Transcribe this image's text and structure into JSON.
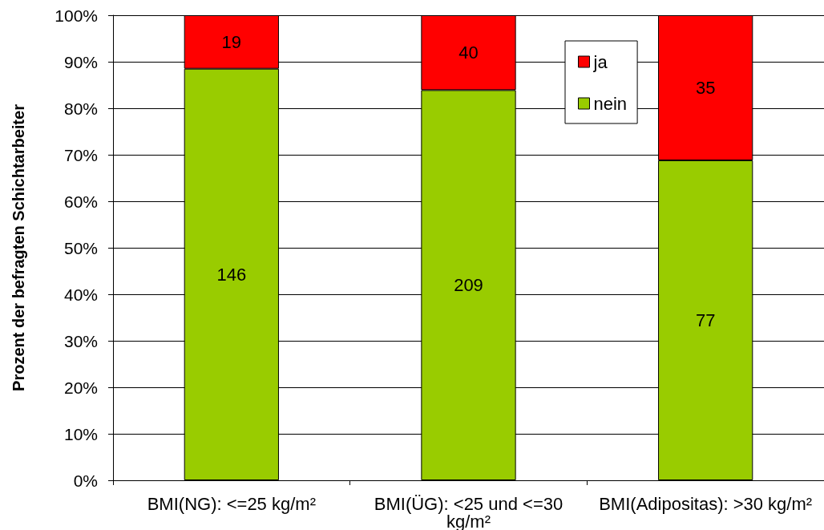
{
  "chart_data": {
    "type": "bar",
    "ylabel": "Prozent der befragten Schichtarbeiter",
    "categories": [
      "BMI(NG): <=25 kg/m²",
      "BMI(ÜG): <25 und <=30 kg/m²",
      "BMI(Adipositas): >30 kg/m²"
    ],
    "series": [
      {
        "name": "nein",
        "color": "#99cc00",
        "values": [
          88.5,
          83.9,
          68.8
        ]
      },
      {
        "name": "ja",
        "color": "#ff0000",
        "values": [
          11.5,
          16.1,
          31.2
        ]
      }
    ],
    "stacked": true,
    "ylim": [
      0,
      100
    ],
    "yticks": [
      {
        "value": 0,
        "label": "0%"
      },
      {
        "value": 10,
        "label": "10%"
      },
      {
        "value": 20,
        "label": "20%"
      },
      {
        "value": 30,
        "label": "30%"
      },
      {
        "value": 40,
        "label": "40%"
      },
      {
        "value": 50,
        "label": "50%"
      },
      {
        "value": 60,
        "label": "60%"
      },
      {
        "value": 70,
        "label": "70%"
      },
      {
        "value": 80,
        "label": "80%"
      },
      {
        "value": 90,
        "label": "90%"
      },
      {
        "value": 100,
        "label": "100%"
      }
    ],
    "annotations": [
      "146",
      "209",
      "77",
      "19",
      "40",
      "35"
    ],
    "grid": "y",
    "legend": "top right"
  }
}
